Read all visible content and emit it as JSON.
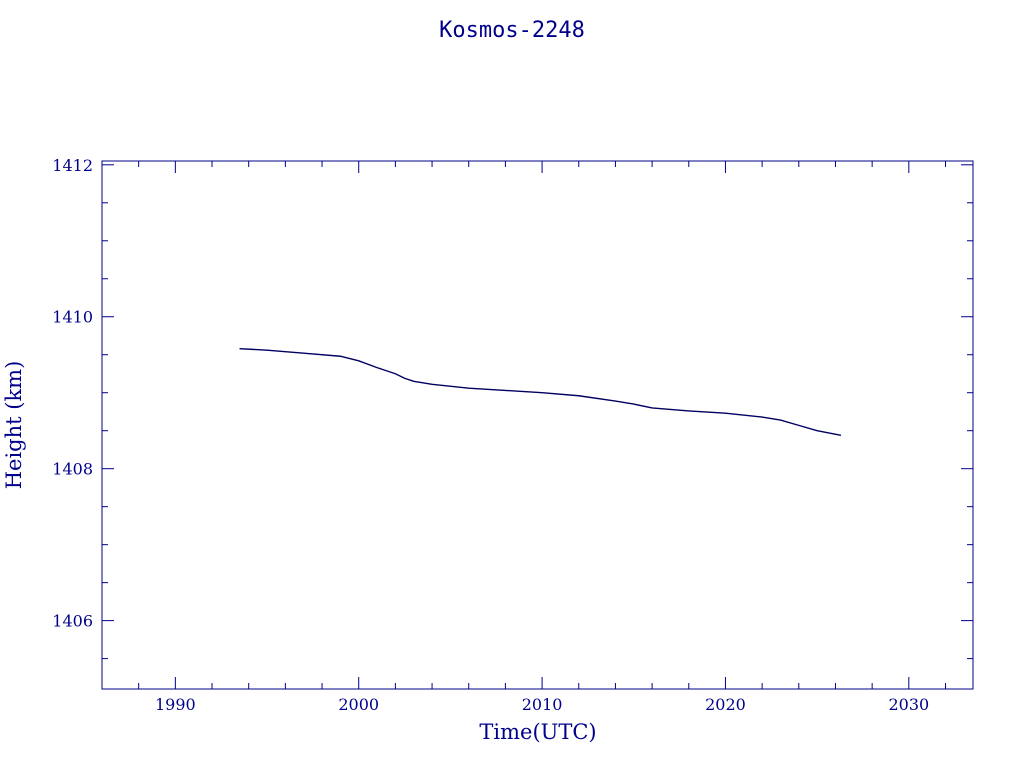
{
  "chart_data": {
    "type": "line",
    "title": "Kosmos-2248",
    "xlabel": "Time(UTC)",
    "ylabel": "Height (km)",
    "xlim": [
      1986.0,
      2033.5
    ],
    "ylim": [
      1405.1,
      1412.05
    ],
    "x_ticks": [
      1990,
      2000,
      2010,
      2020,
      2030
    ],
    "y_ticks": [
      1406,
      1408,
      1410,
      1412
    ],
    "x_minor_step": 2,
    "y_minor_step": 0.5,
    "grid": false,
    "colors": {
      "axes": "#00008b",
      "line": "#000060"
    },
    "series": [
      {
        "x": [
          1993.5,
          1995.0,
          1997.0,
          1999.0,
          2000.0,
          2001.0,
          2002.0,
          2002.5,
          2003.0,
          2004.0,
          2006.0,
          2008.0,
          2010.0,
          2012.0,
          2014.0,
          2015.0,
          2016.0,
          2018.0,
          2020.0,
          2022.0,
          2023.0,
          2024.0,
          2025.0,
          2026.3
        ],
        "y": [
          1409.58,
          1409.56,
          1409.52,
          1409.48,
          1409.42,
          1409.33,
          1409.25,
          1409.19,
          1409.15,
          1409.11,
          1409.06,
          1409.03,
          1409.0,
          1408.96,
          1408.89,
          1408.85,
          1408.8,
          1408.76,
          1408.73,
          1408.68,
          1408.64,
          1408.57,
          1408.5,
          1408.44
        ]
      }
    ]
  }
}
